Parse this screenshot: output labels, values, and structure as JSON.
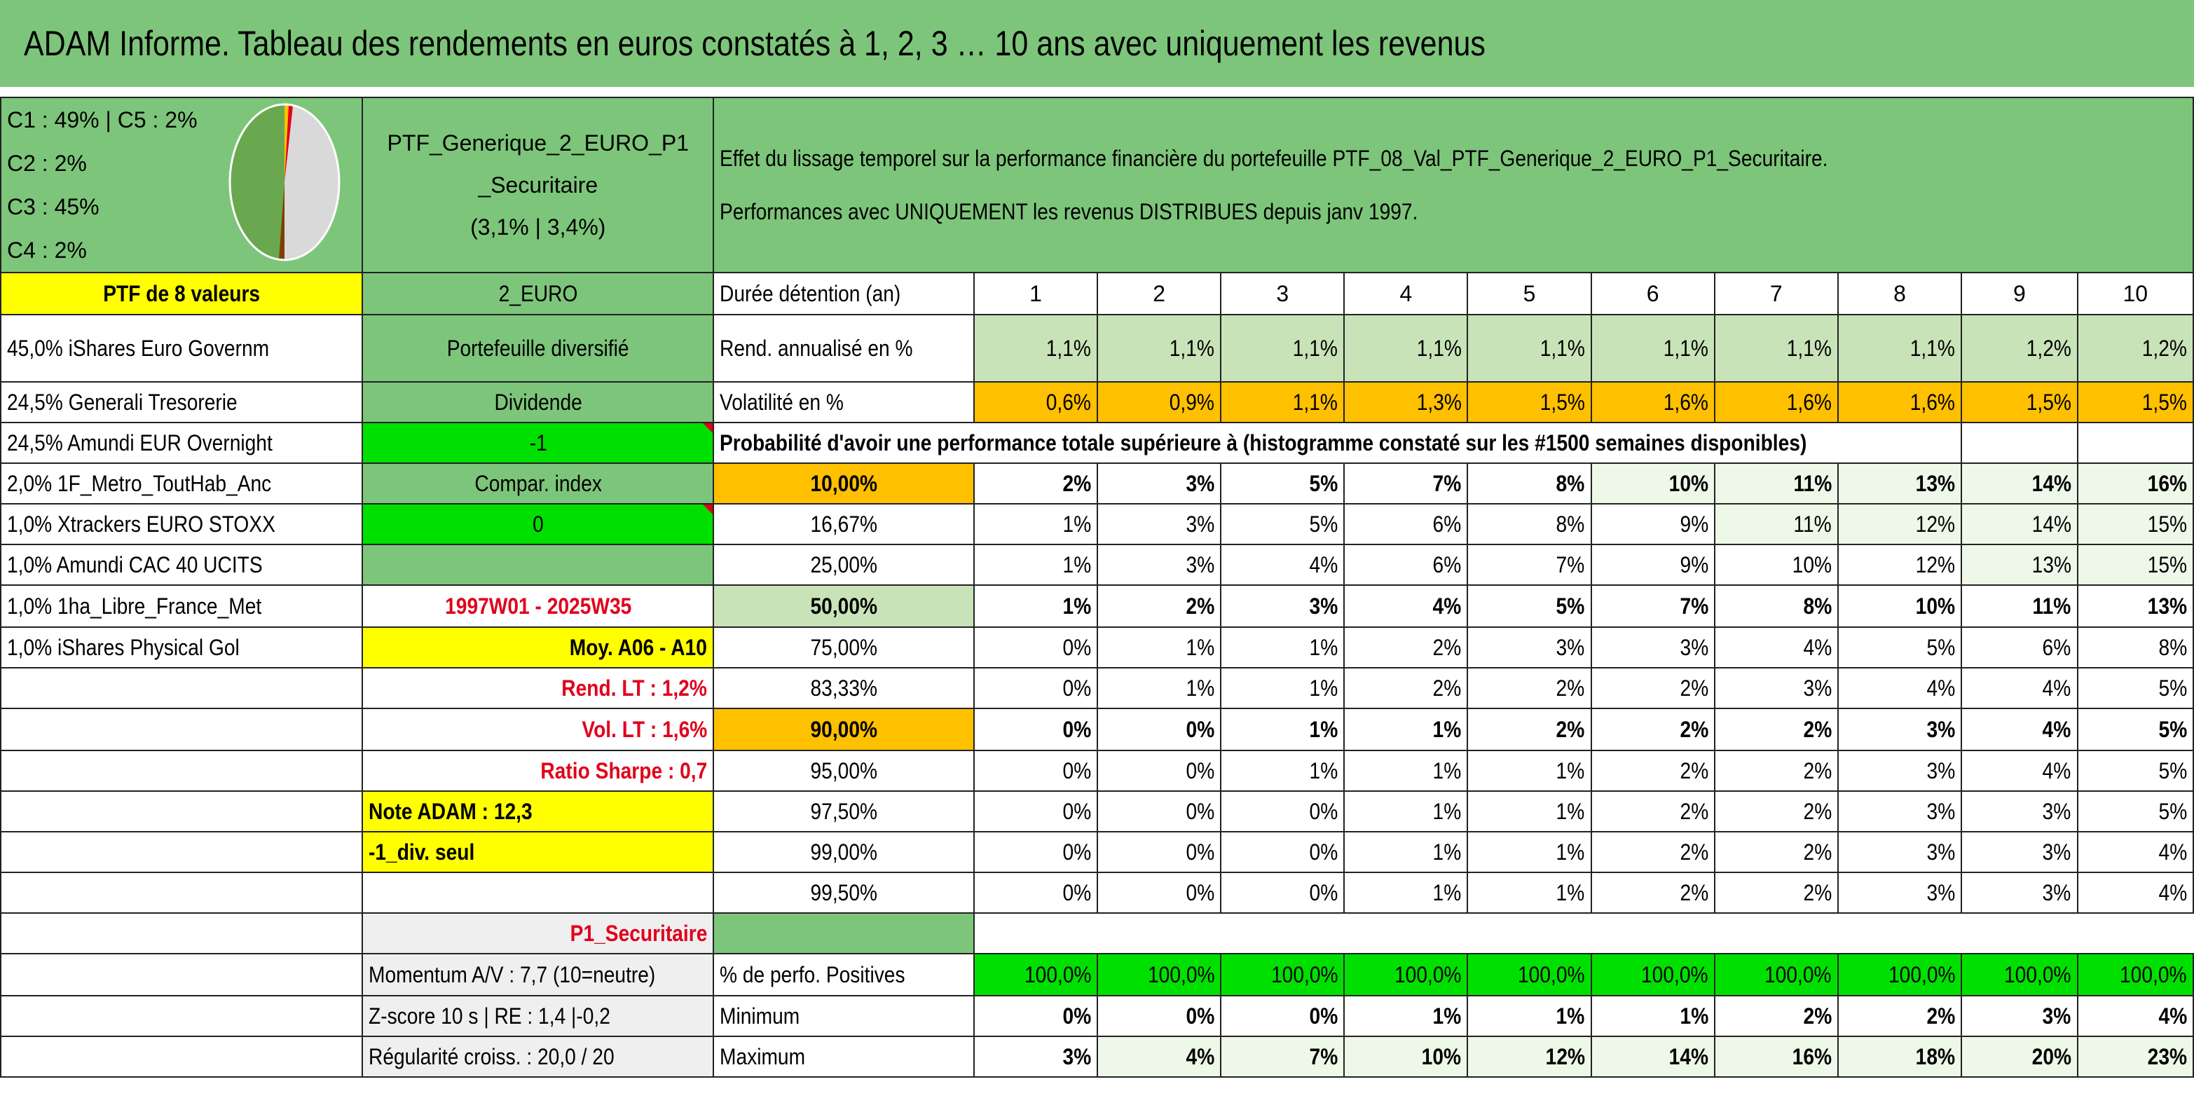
{
  "title": "ADAM Informe. Tableau des rendements en euros constatés à 1, 2, 3 … 10 ans avec uniquement les revenus",
  "composition": {
    "lines": [
      "C1 : 49% | C5 : 2%",
      "C2 : 2%",
      "C3 : 45%",
      "C4 : 2%"
    ],
    "colors": {
      "c1": "#d9d9d9",
      "c3": "#6aa84f",
      "c2": "#ffc000",
      "c4": "#7f3f00",
      "c5": "#e0001b"
    }
  },
  "portfolio": {
    "name_line1": "PTF_Generique_2_EURO_P1",
    "name_line2": "_Securitaire",
    "name_line3": "(3,1% | 3,4%)",
    "effect_line1": "Effet du lissage temporel sur la performance financière du portefeuille PTF_08_Val_PTF_Generique_2_EURO_P1_Securitaire.",
    "effect_line2": "Performances avec UNIQUEMENT les revenus DISTRIBUES depuis janv 1997.",
    "count_label": "PTF de 8 valeurs",
    "currency": "2_EURO"
  },
  "holdings": [
    "45,0% iShares Euro Governm",
    "24,5% Generali Tresorerie",
    "24,5% Amundi EUR Overnight",
    "2,0% 1F_Metro_ToutHab_Anc",
    "1,0% Xtrackers EURO STOXX",
    "1,0% Amundi CAC 40 UCITS",
    "1,0% 1ha_Libre_France_Met",
    "1,0% iShares Physical Gol"
  ],
  "middle": {
    "diversified": "Portefeuille diversifié",
    "dividend_label": "Dividende",
    "dividend_value": "-1",
    "index_label": "Compar. index",
    "index_value": "0",
    "period": "1997W01 - 2025W35",
    "avg": "Moy. A06 - A10",
    "rend_lt": "Rend. LT : 1,2%",
    "vol_lt": "Vol. LT : 1,6%",
    "sharpe": "Ratio Sharpe : 0,7",
    "note": "Note ADAM : 12,3",
    "div_seul": "-1_div. seul",
    "profile": "P1_Securitaire",
    "momentum": "Momentum A/V : 7,7 (10=neutre)",
    "zscore": "Z-score 10 s | RE : 1,4 |-0,2",
    "regularite": "Régularité croiss. : 20,0 / 20"
  },
  "table": {
    "duration_label": "Durée détention (an)",
    "years": [
      "1",
      "2",
      "3",
      "4",
      "5",
      "6",
      "7",
      "8",
      "9",
      "10"
    ],
    "rend_label": "Rend. annualisé en %",
    "rend": [
      "1,1%",
      "1,1%",
      "1,1%",
      "1,1%",
      "1,1%",
      "1,1%",
      "1,1%",
      "1,1%",
      "1,2%",
      "1,2%"
    ],
    "vol_label": "Volatilité en %",
    "vol": [
      "0,6%",
      "0,9%",
      "1,1%",
      "1,3%",
      "1,5%",
      "1,6%",
      "1,6%",
      "1,6%",
      "1,5%",
      "1,5%"
    ],
    "prob_label": "Probabilité d'avoir une performance totale supérieure à (histogramme constaté sur les #1500 semaines disponibles)",
    "quantiles": [
      {
        "q": "10,00%",
        "v": [
          "2%",
          "3%",
          "5%",
          "7%",
          "8%",
          "10%",
          "11%",
          "13%",
          "14%",
          "16%"
        ]
      },
      {
        "q": "16,67%",
        "v": [
          "1%",
          "3%",
          "5%",
          "6%",
          "8%",
          "9%",
          "11%",
          "12%",
          "14%",
          "15%"
        ]
      },
      {
        "q": "25,00%",
        "v": [
          "1%",
          "3%",
          "4%",
          "6%",
          "7%",
          "9%",
          "10%",
          "12%",
          "13%",
          "15%"
        ]
      },
      {
        "q": "50,00%",
        "v": [
          "1%",
          "2%",
          "3%",
          "4%",
          "5%",
          "7%",
          "8%",
          "10%",
          "11%",
          "13%"
        ]
      },
      {
        "q": "75,00%",
        "v": [
          "0%",
          "1%",
          "1%",
          "2%",
          "3%",
          "3%",
          "4%",
          "5%",
          "6%",
          "8%"
        ]
      },
      {
        "q": "83,33%",
        "v": [
          "0%",
          "1%",
          "1%",
          "2%",
          "2%",
          "2%",
          "3%",
          "4%",
          "4%",
          "5%"
        ]
      },
      {
        "q": "90,00%",
        "v": [
          "0%",
          "0%",
          "1%",
          "1%",
          "2%",
          "2%",
          "2%",
          "3%",
          "4%",
          "5%"
        ]
      },
      {
        "q": "95,00%",
        "v": [
          "0%",
          "0%",
          "1%",
          "1%",
          "1%",
          "2%",
          "2%",
          "3%",
          "4%",
          "5%"
        ]
      },
      {
        "q": "97,50%",
        "v": [
          "0%",
          "0%",
          "0%",
          "1%",
          "1%",
          "2%",
          "2%",
          "3%",
          "3%",
          "5%"
        ]
      },
      {
        "q": "99,00%",
        "v": [
          "0%",
          "0%",
          "0%",
          "1%",
          "1%",
          "2%",
          "2%",
          "3%",
          "3%",
          "4%"
        ]
      },
      {
        "q": "99,50%",
        "v": [
          "0%",
          "0%",
          "0%",
          "1%",
          "1%",
          "2%",
          "2%",
          "3%",
          "3%",
          "4%"
        ]
      }
    ],
    "pos_label": "% de perfo. Positives",
    "pos": [
      "100,0%",
      "100,0%",
      "100,0%",
      "100,0%",
      "100,0%",
      "100,0%",
      "100,0%",
      "100,0%",
      "100,0%",
      "100,0%"
    ],
    "min_label": "Minimum",
    "min": [
      "0%",
      "0%",
      "0%",
      "1%",
      "1%",
      "1%",
      "2%",
      "2%",
      "3%",
      "4%"
    ],
    "max_label": "Maximum",
    "max": [
      "3%",
      "4%",
      "7%",
      "10%",
      "12%",
      "14%",
      "16%",
      "18%",
      "20%",
      "23%"
    ]
  }
}
